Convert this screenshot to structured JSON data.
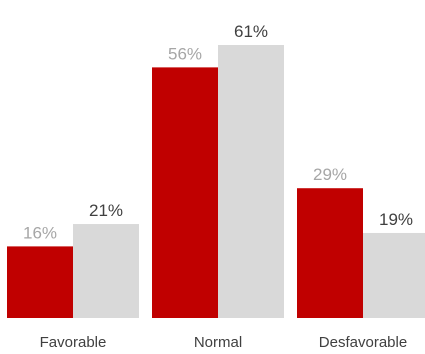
{
  "chart_data": {
    "type": "bar",
    "categories": [
      "Favorable",
      "Normal",
      "Desfavorable"
    ],
    "series": [
      {
        "values": [
          16,
          56,
          29
        ],
        "labels": [
          "16%",
          "56%",
          "29%"
        ],
        "color": "#c00000",
        "label_color": "#a6a6a6"
      },
      {
        "values": [
          21,
          61,
          19
        ],
        "labels": [
          "21%",
          "61%",
          "19%"
        ],
        "color": "#d9d9d9",
        "label_color": "#404040"
      }
    ],
    "title": "",
    "xlabel": "",
    "ylabel": "",
    "ylim": [
      0,
      61
    ],
    "grid": false,
    "legend": "none",
    "y_axis_visible": false
  }
}
